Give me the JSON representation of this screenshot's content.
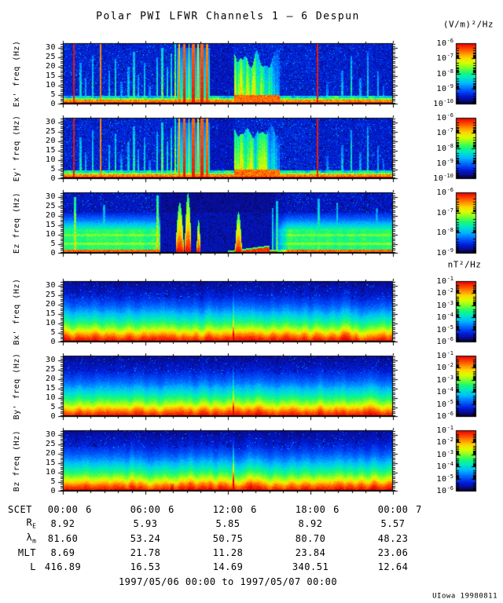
{
  "header": {
    "title": "Polar PWI LFWR Channels 1 — 6 Despun"
  },
  "units": {
    "electric": "(V/m)²/Hz",
    "magnetic": "nT²/Hz"
  },
  "time_axis": {
    "label": "SCET",
    "ticks": [
      {
        "time": "00:00",
        "day": "6"
      },
      {
        "time": "06:00",
        "day": "6"
      },
      {
        "time": "12:00",
        "day": "6"
      },
      {
        "time": "18:00",
        "day": "6"
      },
      {
        "time": "00:00",
        "day": "7"
      }
    ]
  },
  "freq_axis": {
    "ticks": [
      0,
      5,
      10,
      15,
      20,
      25,
      30
    ],
    "max": 32.5
  },
  "ephemeris": [
    {
      "label": "R",
      "sub": "E",
      "values": [
        "8.92",
        "5.93",
        "5.85",
        "8.92",
        "5.57"
      ]
    },
    {
      "label": "λ",
      "sub": "m",
      "values": [
        "81.60",
        "53.24",
        "50.75",
        "80.70",
        "48.23"
      ]
    },
    {
      "label": "MLT",
      "sub": "",
      "values": [
        "8.69",
        "21.78",
        "11.28",
        "23.84",
        "23.06"
      ]
    },
    {
      "label": "L",
      "sub": "",
      "values": [
        "416.89",
        "16.53",
        "14.69",
        "340.51",
        "12.64"
      ]
    }
  ],
  "footer": {
    "range": "1997/05/06 00:00 to 1997/05/07 00:00",
    "credit": "UIowa 19980811"
  },
  "chart_data": {
    "type": "heatmap",
    "title": "Polar PWI LFWR Channels 1 — 6 Despun",
    "x_axis": {
      "label": "SCET",
      "start": "1997/05/06 00:00",
      "end": "1997/05/07 00:00",
      "major_tick_hours": [
        0,
        6,
        12,
        18,
        24
      ],
      "tick_labels": [
        "00:00 6",
        "06:00 6",
        "12:00 6",
        "18:00 6",
        "00:00 7"
      ]
    },
    "y_axis": {
      "label": "freq (Hz)",
      "range": [
        0,
        32.5
      ],
      "ticks": [
        0,
        5,
        10,
        15,
        20,
        25,
        30
      ]
    },
    "panels": [
      {
        "name": "Ex",
        "ylabel": "Ex' freq (Hz)",
        "unit": "(V/m)²/Hz",
        "colorbar_exponents": [
          -6,
          -7,
          -8,
          -9,
          -10
        ],
        "kind": "E",
        "seed": 11
      },
      {
        "name": "Ey",
        "ylabel": "Ey' freq (Hz)",
        "unit": "(V/m)²/Hz",
        "colorbar_exponents": [
          -6,
          -7,
          -8,
          -9,
          -10
        ],
        "kind": "E",
        "seed": 23
      },
      {
        "name": "Ez",
        "ylabel": "Ez freq (Hz)",
        "unit": "(V/m)²/Hz",
        "colorbar_exponents": [
          -6,
          -7,
          -8,
          -9
        ],
        "kind": "Ez",
        "seed": 37
      },
      {
        "name": "Bx",
        "ylabel": "Bx' freq (Hz)",
        "unit": "nT²/Hz",
        "colorbar_exponents": [
          -1,
          -2,
          -3,
          -4,
          -5,
          -6
        ],
        "kind": "B",
        "seed": 51
      },
      {
        "name": "By",
        "ylabel": "By' freq (Hz)",
        "unit": "nT²/Hz",
        "colorbar_exponents": [
          -1,
          -2,
          -3,
          -4,
          -5,
          -6
        ],
        "kind": "B",
        "seed": 67
      },
      {
        "name": "Bz",
        "ylabel": "Bz freq (Hz)",
        "unit": "nT²/Hz",
        "colorbar_exponents": [
          -1,
          -2,
          -3,
          -4,
          -5,
          -6
        ],
        "kind": "B",
        "seed": 83,
        "strong_line": true
      }
    ],
    "colormap": [
      [
        0.0,
        [
          5,
          5,
          35
        ]
      ],
      [
        0.06,
        [
          10,
          10,
          140
        ]
      ],
      [
        0.14,
        [
          0,
          30,
          220
        ]
      ],
      [
        0.24,
        [
          0,
          100,
          255
        ]
      ],
      [
        0.34,
        [
          0,
          185,
          255
        ]
      ],
      [
        0.44,
        [
          0,
          235,
          190
        ]
      ],
      [
        0.52,
        [
          30,
          250,
          110
        ]
      ],
      [
        0.6,
        [
          130,
          255,
          40
        ]
      ],
      [
        0.68,
        [
          215,
          255,
          0
        ]
      ],
      [
        0.76,
        [
          255,
          215,
          0
        ]
      ],
      [
        0.84,
        [
          255,
          140,
          0
        ]
      ],
      [
        0.92,
        [
          255,
          60,
          0
        ]
      ],
      [
        1.0,
        [
          225,
          0,
          0
        ]
      ]
    ],
    "features": {
      "E": {
        "red_lines": [
          [
            0.031,
            1.0
          ],
          [
            0.113,
            0.88
          ],
          [
            0.771,
            1.0
          ]
        ],
        "spikes": [
          [
            0.052,
            22,
            0.5
          ],
          [
            0.068,
            14,
            0.42
          ],
          [
            0.09,
            26,
            0.48
          ],
          [
            0.14,
            18,
            0.45
          ],
          [
            0.158,
            24,
            0.5
          ],
          [
            0.176,
            12,
            0.4
          ],
          [
            0.198,
            20,
            0.45
          ],
          [
            0.214,
            28,
            0.52
          ],
          [
            0.228,
            16,
            0.42
          ],
          [
            0.247,
            22,
            0.48
          ],
          [
            0.262,
            10,
            0.38
          ],
          [
            0.285,
            25,
            0.5
          ],
          [
            0.3,
            30,
            0.6
          ],
          [
            0.315,
            20,
            0.5
          ],
          [
            0.328,
            27,
            0.55
          ],
          [
            0.34,
            32,
            0.7
          ],
          [
            0.8,
            12,
            0.35
          ],
          [
            0.845,
            18,
            0.42
          ],
          [
            0.872,
            26,
            0.5
          ],
          [
            0.9,
            14,
            0.4
          ],
          [
            0.922,
            28,
            0.45
          ],
          [
            0.953,
            18,
            0.4
          ],
          [
            0.97,
            10,
            0.35
          ]
        ],
        "bars": [
          [
            0.352,
            0.005,
            0.9
          ],
          [
            0.366,
            0.008,
            1.0
          ],
          [
            0.381,
            0.004,
            0.75
          ],
          [
            0.394,
            0.009,
            1.0
          ],
          [
            0.408,
            0.005,
            0.85
          ],
          [
            0.421,
            0.01,
            1.0
          ],
          [
            0.436,
            0.006,
            0.95
          ]
        ],
        "burst": [
          0.518,
          0.655
        ],
        "quiet": [
          0.443,
          0.515
        ]
      },
      "Ez": {
        "dropout": [
          0.293,
          0.626
        ],
        "ramp": 0.055,
        "peaks": [
          [
            0.353,
            0.012,
            27
          ],
          [
            0.378,
            0.01,
            32
          ],
          [
            0.41,
            0.006,
            18
          ],
          [
            0.531,
            0.01,
            22
          ]
        ],
        "wedge": [
          0.5,
          0.626
        ],
        "spikes": [
          [
            0.036,
            30,
            0.78
          ],
          [
            0.124,
            26,
            0.55
          ],
          [
            0.286,
            31,
            0.8
          ],
          [
            0.635,
            24,
            0.55
          ],
          [
            0.648,
            28,
            0.6
          ],
          [
            0.72,
            20,
            0.45
          ],
          [
            0.774,
            29,
            0.6
          ],
          [
            0.83,
            27,
            0.55
          ],
          [
            0.91,
            18,
            0.45
          ],
          [
            0.95,
            24,
            0.5
          ]
        ]
      },
      "B": {
        "line_t": 0.515,
        "bz_bump_t": 0.33,
        "profile": [
          [
            0,
            1.0
          ],
          [
            2,
            0.93
          ],
          [
            3.5,
            0.85
          ],
          [
            5,
            0.76
          ],
          [
            6.5,
            0.66
          ],
          [
            8.5,
            0.57
          ],
          [
            10.5,
            0.5
          ],
          [
            12.5,
            0.43
          ],
          [
            14.5,
            0.37
          ],
          [
            17,
            0.29
          ],
          [
            20,
            0.22
          ],
          [
            24,
            0.15
          ],
          [
            28,
            0.11
          ],
          [
            32.5,
            0.07
          ]
        ]
      }
    }
  }
}
